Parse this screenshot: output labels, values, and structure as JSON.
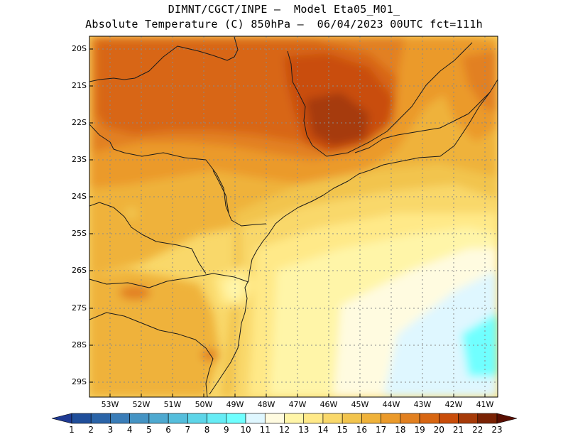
{
  "title": {
    "line1": "DIMNT/CGCT/INPE –  Model Eta05_M01_",
    "line2": "Absolute Temperature (C) 850hPa –  06/04/2023 00UTC fct=111h"
  },
  "map": {
    "latitude_labels": [
      "20S",
      "21S",
      "22S",
      "23S",
      "24S",
      "25S",
      "26S",
      "27S",
      "28S",
      "29S"
    ],
    "longitude_labels": [
      "53W",
      "52W",
      "51W",
      "50W",
      "49W",
      "48W",
      "47W",
      "46W",
      "45W",
      "44W",
      "43W",
      "42W",
      "41W"
    ]
  },
  "colorbar": {
    "labels": [
      "1",
      "2",
      "3",
      "4",
      "5",
      "6",
      "7",
      "8",
      "9",
      "10",
      "11",
      "12",
      "13",
      "14",
      "15",
      "16",
      "17",
      "18",
      "19",
      "20",
      "21",
      "22",
      "23"
    ],
    "colors": [
      "#1f3a93",
      "#1f4e9a",
      "#2a64a8",
      "#3a7db8",
      "#4594c4",
      "#4ea9d0",
      "#55bedc",
      "#5dd5e8",
      "#66ecf5",
      "#6fffff",
      "#dff7ff",
      "#fffbe0",
      "#fff5a8",
      "#ffe988",
      "#f9d86a",
      "#f2c44d",
      "#efb23a",
      "#eb9a2a",
      "#e28020",
      "#d86612",
      "#c94d0a",
      "#a63a08",
      "#7a2204",
      "#5a0f02"
    ]
  }
}
